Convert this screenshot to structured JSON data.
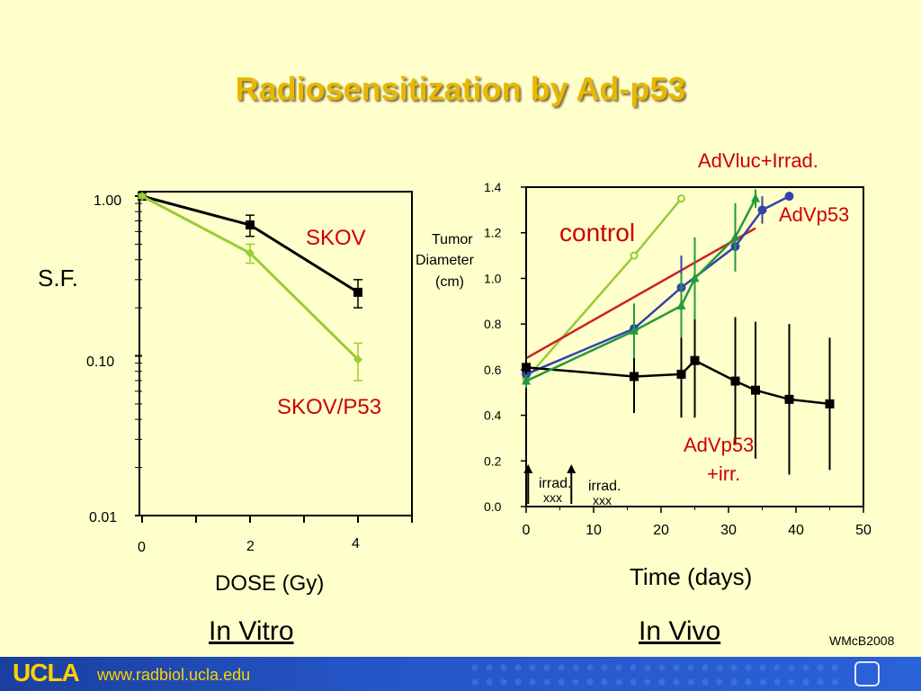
{
  "slide": {
    "title": "Radiosensitization by Ad-p53",
    "credit": "WMcB2008",
    "footer_logo": "UCLA",
    "footer_url": "www.radbiol.ucla.edu",
    "colors": {
      "title": "#e8b800",
      "background": "#ffffcc",
      "footer": "#1a3f9e"
    }
  },
  "chart_data": [
    {
      "type": "line",
      "panel_label": "In Vitro",
      "xlabel": "DOSE (Gy)",
      "ylabel": "S.F.",
      "yscale": "log",
      "ylim": [
        0.01,
        1.0
      ],
      "xlim": [
        0,
        5
      ],
      "x_ticks": [
        "0",
        "2",
        "4"
      ],
      "y_ticks": [
        "1.00",
        "0.10",
        "0.01"
      ],
      "series": [
        {
          "name": "SKOV",
          "color": "#000000",
          "marker": "square",
          "x": [
            0,
            2,
            4
          ],
          "y": [
            1.0,
            0.66,
            0.25
          ],
          "err": [
            0.03,
            0.1,
            0.05
          ]
        },
        {
          "name": "SKOV/P53",
          "color": "#99cc33",
          "marker": "diamond",
          "x": [
            0,
            2,
            4
          ],
          "y": [
            1.0,
            0.44,
            0.095
          ],
          "err": [
            0.03,
            0.06,
            0.025
          ]
        }
      ]
    },
    {
      "type": "line",
      "panel_label": "In Vivo",
      "xlabel": "Time (days)",
      "ylabel": "Tumor Diameter (cm)",
      "ylim": [
        0,
        1.4
      ],
      "xlim": [
        0,
        50
      ],
      "x_ticks": [
        "0",
        "10",
        "20",
        "30",
        "40",
        "50"
      ],
      "y_ticks": [
        "0.0",
        "0.2",
        "0.4",
        "0.6",
        "0.8",
        "1.0",
        "1.2",
        "1.4"
      ],
      "annotations": [
        {
          "text": "irrad.",
          "sub": "xxx",
          "x": 4
        },
        {
          "text": "irrad.",
          "sub": "xxx",
          "x": 11.5
        }
      ],
      "series": [
        {
          "name": "control",
          "color": "#99cc33",
          "marker": "circle-open",
          "x": [
            0,
            16,
            23
          ],
          "y": [
            0.56,
            1.1,
            1.35
          ],
          "err": []
        },
        {
          "name": "AdVluc+Irrad.",
          "color": "#cc2222",
          "marker": "none",
          "x": [
            0,
            34
          ],
          "y": [
            0.65,
            1.22
          ],
          "err": []
        },
        {
          "name": "AdVp53",
          "color": "#3344aa",
          "marker": "circle",
          "x": [
            0,
            16,
            23,
            31,
            35,
            39
          ],
          "y": [
            0.58,
            0.78,
            0.96,
            1.14,
            1.3,
            1.36
          ],
          "err": [
            0.03,
            0.1,
            0.14,
            0.08,
            0.06,
            0.02
          ]
        },
        {
          "name": "AdVp53 +irr.",
          "color": "#000000",
          "marker": "square",
          "x": [
            0,
            16,
            23,
            25,
            31,
            34,
            39,
            45
          ],
          "y": [
            0.61,
            0.57,
            0.58,
            0.64,
            0.55,
            0.51,
            0.47,
            0.45
          ],
          "err": [
            0.1,
            0.16,
            0.19,
            0.25,
            0.28,
            0.3,
            0.33,
            0.29
          ]
        },
        {
          "name": "",
          "color": "#22993a",
          "marker": "triangle",
          "x": [
            0,
            16,
            23,
            25,
            31,
            34
          ],
          "y": [
            0.55,
            0.77,
            0.88,
            1.0,
            1.18,
            1.35
          ],
          "err": [
            0.03,
            0.12,
            0.14,
            0.18,
            0.15,
            0.04
          ]
        }
      ]
    }
  ]
}
